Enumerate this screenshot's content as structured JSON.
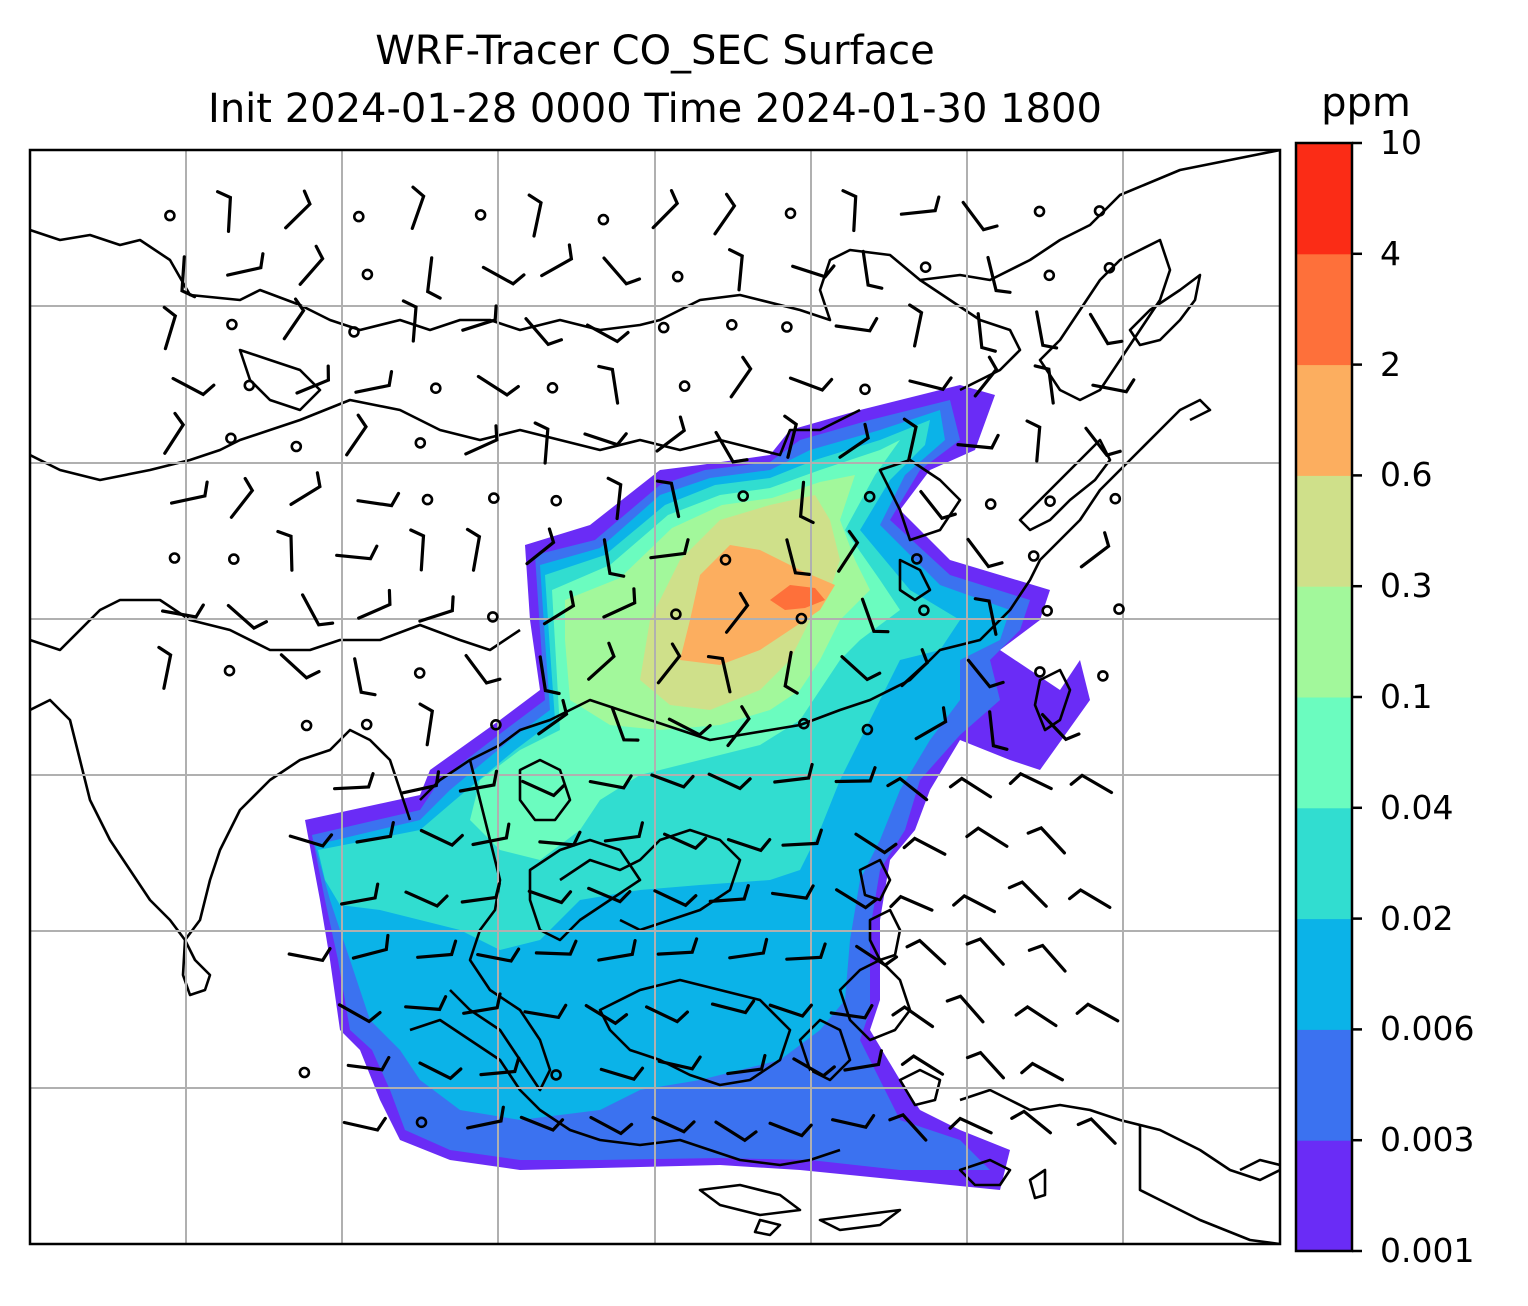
{
  "title": {
    "line1": "WRF-Tracer CO_SEC Surface",
    "line2": "Init 2024-01-28 0000 Time 2024-01-30 1800"
  },
  "colorbar": {
    "unit": "ppm",
    "levels": [
      "0.001",
      "0.003",
      "0.006",
      "0.02",
      "0.04",
      "0.1",
      "0.3",
      "0.6",
      "2",
      "4",
      "10"
    ],
    "colors": [
      "#6a2cf6",
      "#3b72f0",
      "#0bb3e8",
      "#31ddd0",
      "#6bfcbf",
      "#a2f89b",
      "#cfe08a",
      "#fcae5f",
      "#fe703a",
      "#fb2c16"
    ]
  },
  "map": {
    "projection": "regional lat-lon with gridlines",
    "gridlines": true,
    "overlay": "wind barbs (black) and calm circles",
    "coastline_color": "#000000",
    "grid_color": "#b0b0b0"
  }
}
